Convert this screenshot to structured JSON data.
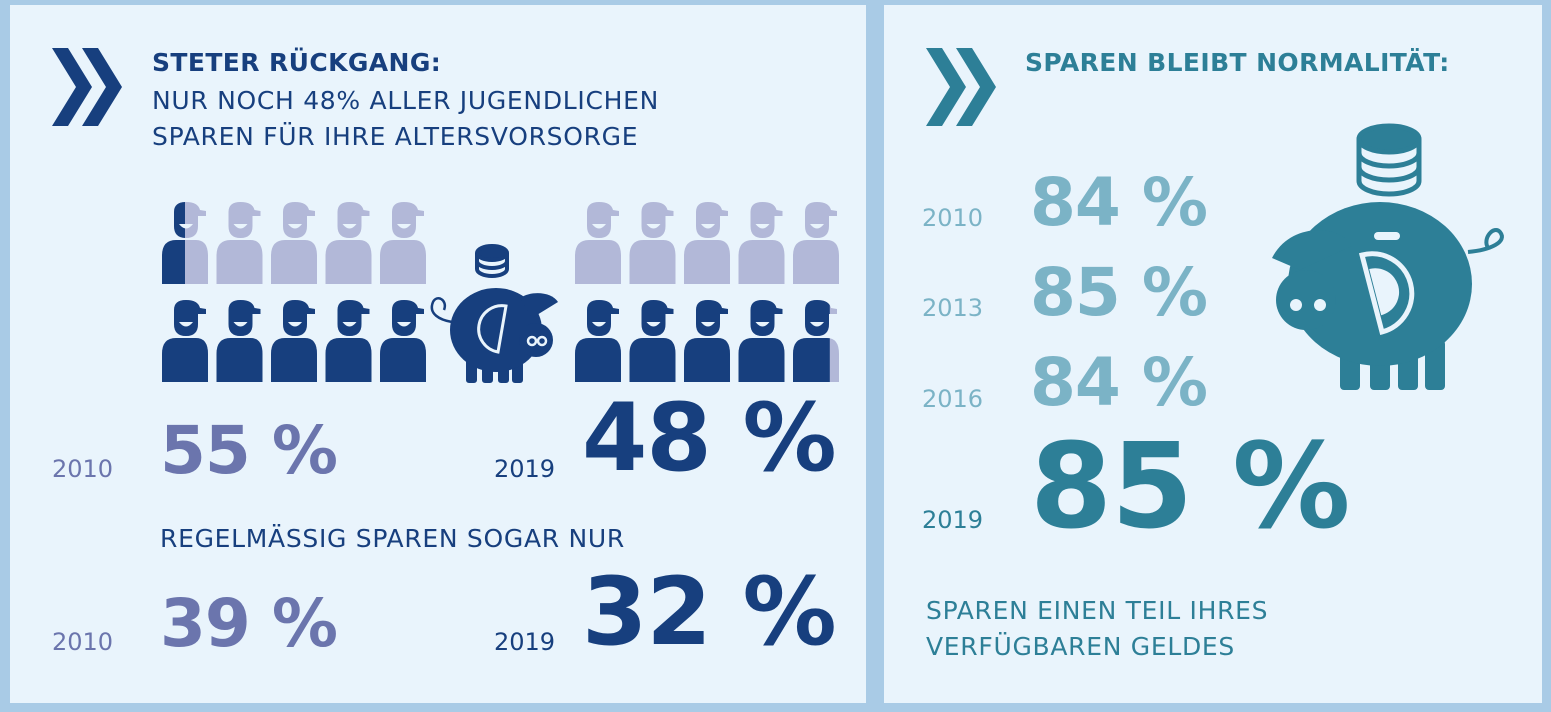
{
  "colors": {
    "dark_blue": "#173f7e",
    "mid_blue": "#6b75ad",
    "light_figure": "#b2b8d8",
    "teal": "#2d7f97",
    "teal_light": "#7bb3c6",
    "panel_bg": "#e9f4fc",
    "frame": "#a9cbe6"
  },
  "left": {
    "icon": "double-chevron-icon",
    "title": "STETER RÜCKGANG:",
    "subtitle_line1": "NUR NOCH 48% ALLER JUGENDLICHEN",
    "subtitle_line2": "SPAREN FÜR IHRE ALTERSVORSORGE",
    "regular_text": "REGELMÄSSIG SPAREN SOGAR NUR"
  },
  "right": {
    "icon": "double-chevron-icon",
    "title": "SPAREN BLEIBT NORMALITÄT:",
    "caption_line1": "SPAREN EINEN TEIL IHRES",
    "caption_line2": "VERFÜGBAREN GELDES"
  },
  "chart_data": [
    {
      "type": "pictogram",
      "title": "NUR NOCH 48% ALLER JUGENDLICHEN SPAREN FÜR IHRE ALTERSVORSORGE",
      "unit": "%",
      "icons_per_group": 10,
      "x": [
        "2010",
        "2019"
      ],
      "values": [
        55,
        48
      ],
      "labels": [
        "55 %",
        "48 %"
      ]
    },
    {
      "type": "table",
      "title": "REGELMÄSSIG SPAREN SOGAR NUR",
      "unit": "%",
      "x": [
        "2010",
        "2019"
      ],
      "values": [
        39,
        32
      ],
      "labels": [
        "39 %",
        "32 %"
      ]
    },
    {
      "type": "table",
      "title": "SPAREN BLEIBT NORMALITÄT:",
      "unit": "%",
      "x": [
        "2010",
        "2013",
        "2016",
        "2019"
      ],
      "values": [
        84,
        85,
        84,
        85
      ],
      "labels": [
        "84 %",
        "85 %",
        "84 %",
        "85 %"
      ]
    }
  ]
}
